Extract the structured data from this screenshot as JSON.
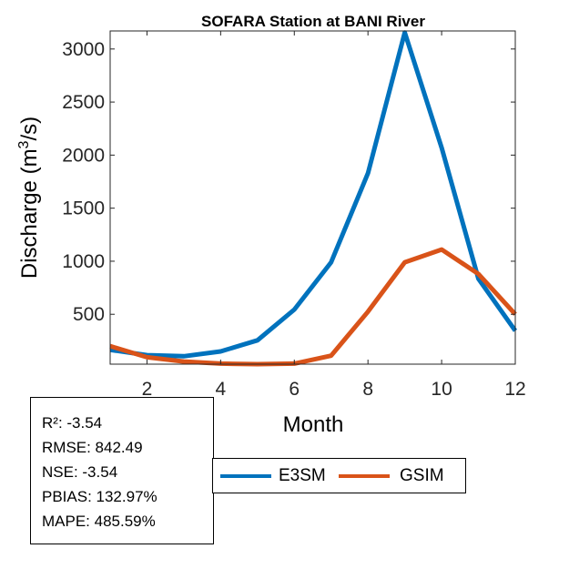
{
  "chart_data": {
    "type": "line",
    "title": "SOFARA  Station at  BANI  River",
    "xlabel": "Month",
    "ylabel_main": "Discharge (m",
    "ylabel_sup": "3",
    "ylabel_tail": "/s)",
    "xlim": [
      1,
      12
    ],
    "ylim": [
      30,
      3170
    ],
    "xticks": [
      2,
      4,
      6,
      8,
      10,
      12
    ],
    "yticks": [
      500,
      1000,
      1500,
      2000,
      2500,
      3000
    ],
    "x": [
      1,
      2,
      3,
      4,
      5,
      6,
      7,
      8,
      9,
      10,
      11,
      12
    ],
    "series": [
      {
        "name": "E3SM",
        "color": "#0072BD",
        "values": [
          165,
          115,
          105,
          150,
          255,
          545,
          990,
          1830,
          3155,
          2070,
          835,
          345
        ]
      },
      {
        "name": "GSIM",
        "color": "#D95319",
        "values": [
          200,
          95,
          55,
          35,
          30,
          35,
          110,
          525,
          990,
          1110,
          880,
          500
        ]
      }
    ]
  },
  "stats": {
    "lines": [
      "R²: -3.54",
      "RMSE: 842.49",
      "NSE: -3.54",
      "PBIAS: 132.97%",
      "MAPE: 485.59%"
    ]
  },
  "legend": {
    "items": [
      {
        "label": "E3SM",
        "color": "#0072BD"
      },
      {
        "label": "GSIM",
        "color": "#D95319"
      }
    ]
  }
}
